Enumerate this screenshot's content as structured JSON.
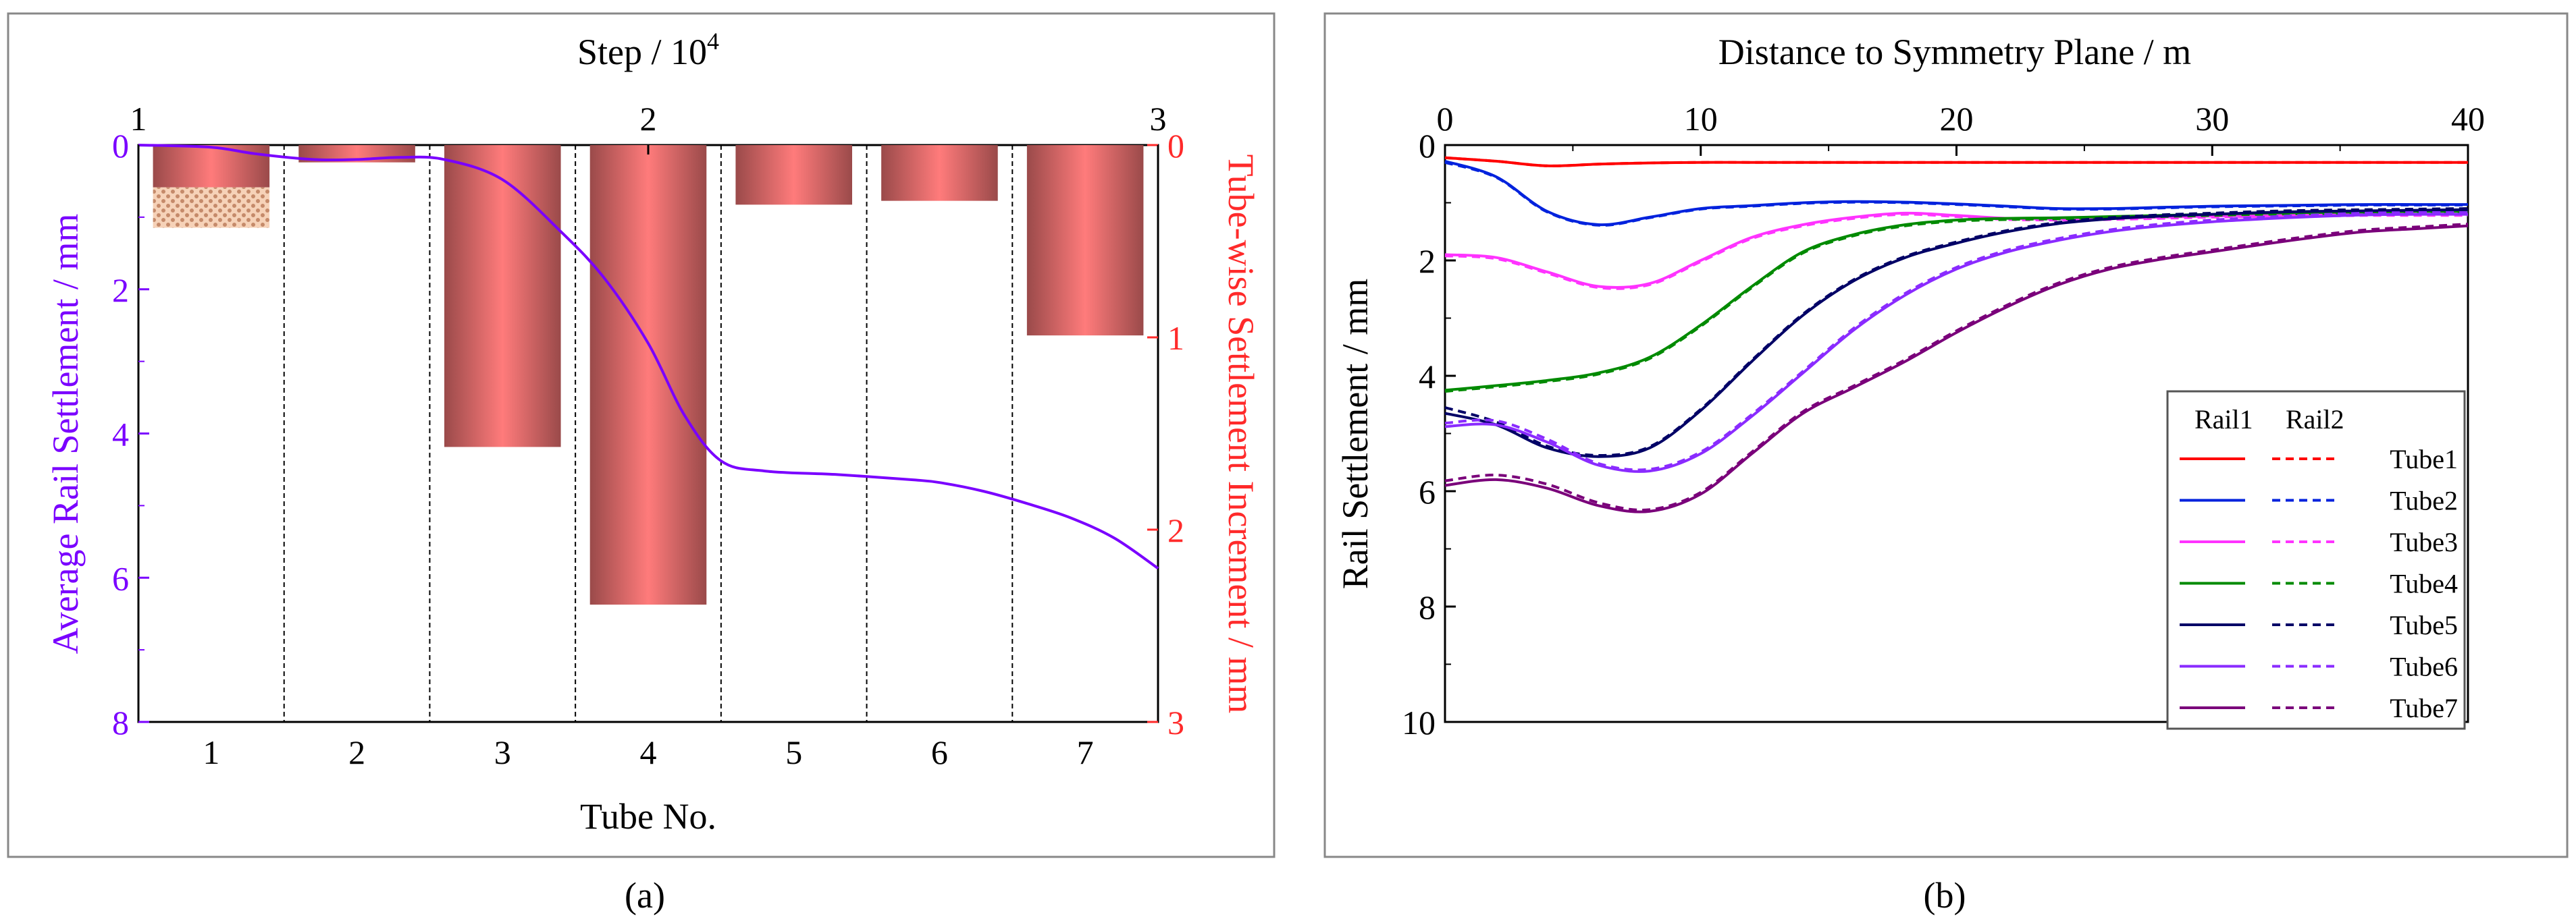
{
  "chart_data": [
    {
      "type": "bar",
      "panel_label": "(a)",
      "title": "",
      "xlabel": "Tube No.",
      "top_xlabel_base": "Step / 10",
      "top_xlabel_exp": "4",
      "ylabel": "Average Rail Settlement / mm",
      "y2label": "Tube-wise Settlement Increment / mm",
      "categories": [
        "1",
        "2",
        "3",
        "4",
        "5",
        "6",
        "7"
      ],
      "ylim": [
        0,
        8
      ],
      "y_ticks": [
        "0",
        "2",
        "4",
        "6",
        "8"
      ],
      "y2lim": [
        0,
        3
      ],
      "y2_ticks": [
        "0",
        "1",
        "2",
        "3"
      ],
      "top_ticks": [
        "1",
        "2",
        "3"
      ],
      "colors": {
        "curve": "#7a00ff",
        "right_axis": "#ff2a2a",
        "bar_center": "#ff7b7b",
        "bar_edge": "#9a4a4a",
        "hatch": "#d99070"
      },
      "series": [
        {
          "name": "Tube-wise Settlement Increment",
          "axis": "right",
          "values": [
            0.22,
            0.09,
            1.57,
            2.39,
            0.31,
            0.29,
            0.99
          ]
        },
        {
          "name": "Tube 1 hatched increment",
          "axis": "right",
          "from": 0.22,
          "to": 0.43
        },
        {
          "name": "Average Rail Settlement",
          "axis": "left",
          "x": [
            0.5,
            1.0,
            1.3,
            1.7,
            2.0,
            2.3,
            2.6,
            3.0,
            3.4,
            3.7,
            4.0,
            4.25,
            4.5,
            4.8,
            5.3,
            5.8,
            6.0,
            6.3,
            6.6,
            6.9,
            7.2,
            7.5
          ],
          "y": [
            0.0,
            0.03,
            0.12,
            0.2,
            0.2,
            0.17,
            0.2,
            0.48,
            1.2,
            1.85,
            2.75,
            3.75,
            4.38,
            4.52,
            4.57,
            4.64,
            4.68,
            4.8,
            4.97,
            5.17,
            5.45,
            5.87
          ]
        }
      ]
    },
    {
      "type": "line",
      "panel_label": "(b)",
      "title": "",
      "xlabel": "Distance to Symmetry Plane / m",
      "ylabel": "Rail Settlement / mm",
      "xlim": [
        0,
        40
      ],
      "x_ticks": [
        "0",
        "10",
        "20",
        "30",
        "40"
      ],
      "ylim": [
        0,
        10
      ],
      "y_ticks": [
        "0",
        "2",
        "4",
        "6",
        "8",
        "10"
      ],
      "legend_headers": [
        "Rail1",
        "Rail2"
      ],
      "legend_position": "center-right",
      "x": [
        0,
        2,
        4,
        6,
        8,
        10,
        12,
        14,
        16,
        18,
        20,
        22,
        24,
        26,
        28,
        30,
        32,
        34,
        36,
        38,
        40
      ],
      "series": [
        {
          "name": "Tube1",
          "color": "#ff0000",
          "rail1": [
            0.22,
            0.28,
            0.36,
            0.33,
            0.31,
            0.3,
            0.3,
            0.3,
            0.3,
            0.3,
            0.3,
            0.3,
            0.3,
            0.3,
            0.3,
            0.3,
            0.3,
            0.3,
            0.3,
            0.3,
            0.3
          ],
          "rail2": [
            0.22,
            0.28,
            0.36,
            0.33,
            0.31,
            0.3,
            0.3,
            0.3,
            0.3,
            0.3,
            0.3,
            0.3,
            0.3,
            0.3,
            0.3,
            0.3,
            0.3,
            0.3,
            0.3,
            0.3,
            0.3
          ]
        },
        {
          "name": "Tube2",
          "color": "#0022dd",
          "rail1": [
            0.28,
            0.55,
            1.15,
            1.38,
            1.25,
            1.1,
            1.05,
            1.0,
            0.98,
            0.99,
            1.02,
            1.06,
            1.1,
            1.1,
            1.08,
            1.06,
            1.05,
            1.04,
            1.03,
            1.03,
            1.03
          ],
          "rail2": [
            0.3,
            0.56,
            1.16,
            1.39,
            1.26,
            1.11,
            1.06,
            1.01,
            0.99,
            1.0,
            1.03,
            1.07,
            1.11,
            1.11,
            1.09,
            1.07,
            1.06,
            1.05,
            1.04,
            1.04,
            1.04
          ]
        },
        {
          "name": "Tube3",
          "color": "#ff33ff",
          "rail1": [
            1.9,
            1.95,
            2.2,
            2.45,
            2.4,
            2.0,
            1.6,
            1.38,
            1.25,
            1.18,
            1.22,
            1.27,
            1.28,
            1.27,
            1.25,
            1.23,
            1.22,
            1.21,
            1.2,
            1.2,
            1.2
          ],
          "rail2": [
            1.92,
            1.97,
            2.22,
            2.47,
            2.42,
            2.02,
            1.62,
            1.4,
            1.27,
            1.2,
            1.24,
            1.29,
            1.3,
            1.29,
            1.27,
            1.25,
            1.24,
            1.23,
            1.22,
            1.22,
            1.22
          ]
        },
        {
          "name": "Tube4",
          "color": "#008a00",
          "rail1": [
            4.25,
            4.17,
            4.08,
            3.95,
            3.68,
            3.12,
            2.45,
            1.85,
            1.55,
            1.38,
            1.3,
            1.27,
            1.26,
            1.24,
            1.22,
            1.2,
            1.18,
            1.17,
            1.16,
            1.15,
            1.15
          ],
          "rail2": [
            4.27,
            4.19,
            4.1,
            3.97,
            3.7,
            3.14,
            2.47,
            1.87,
            1.57,
            1.4,
            1.32,
            1.29,
            1.28,
            1.26,
            1.24,
            1.22,
            1.2,
            1.19,
            1.18,
            1.17,
            1.17
          ]
        },
        {
          "name": "Tube5",
          "color": "#000066",
          "rail1": [
            4.65,
            4.85,
            5.25,
            5.4,
            5.25,
            4.6,
            3.75,
            2.95,
            2.35,
            1.95,
            1.7,
            1.5,
            1.36,
            1.28,
            1.23,
            1.2,
            1.17,
            1.15,
            1.14,
            1.13,
            1.12
          ],
          "rail2": [
            4.55,
            4.8,
            5.22,
            5.38,
            5.23,
            4.58,
            3.73,
            2.93,
            2.33,
            1.93,
            1.68,
            1.48,
            1.34,
            1.26,
            1.21,
            1.18,
            1.15,
            1.13,
            1.12,
            1.11,
            1.1
          ]
        },
        {
          "name": "Tube6",
          "color": "#8a2bff",
          "rail1": [
            4.88,
            4.85,
            5.15,
            5.55,
            5.65,
            5.35,
            4.7,
            3.95,
            3.2,
            2.6,
            2.15,
            1.85,
            1.65,
            1.5,
            1.4,
            1.33,
            1.28,
            1.24,
            1.21,
            1.2,
            1.2
          ],
          "rail2": [
            4.82,
            4.78,
            5.1,
            5.52,
            5.62,
            5.32,
            4.67,
            3.92,
            3.17,
            2.57,
            2.12,
            1.82,
            1.62,
            1.47,
            1.37,
            1.3,
            1.25,
            1.21,
            1.18,
            1.17,
            1.17
          ]
        },
        {
          "name": "Tube7",
          "color": "#7a007a",
          "rail1": [
            5.9,
            5.8,
            5.95,
            6.25,
            6.35,
            6.05,
            5.35,
            4.65,
            4.2,
            3.75,
            3.25,
            2.8,
            2.42,
            2.15,
            1.98,
            1.85,
            1.72,
            1.6,
            1.5,
            1.45,
            1.4
          ],
          "rail2": [
            5.82,
            5.72,
            5.88,
            6.2,
            6.32,
            6.02,
            5.32,
            4.62,
            4.17,
            3.72,
            3.22,
            2.77,
            2.39,
            2.12,
            1.95,
            1.82,
            1.69,
            1.57,
            1.47,
            1.42,
            1.37
          ]
        }
      ]
    }
  ]
}
